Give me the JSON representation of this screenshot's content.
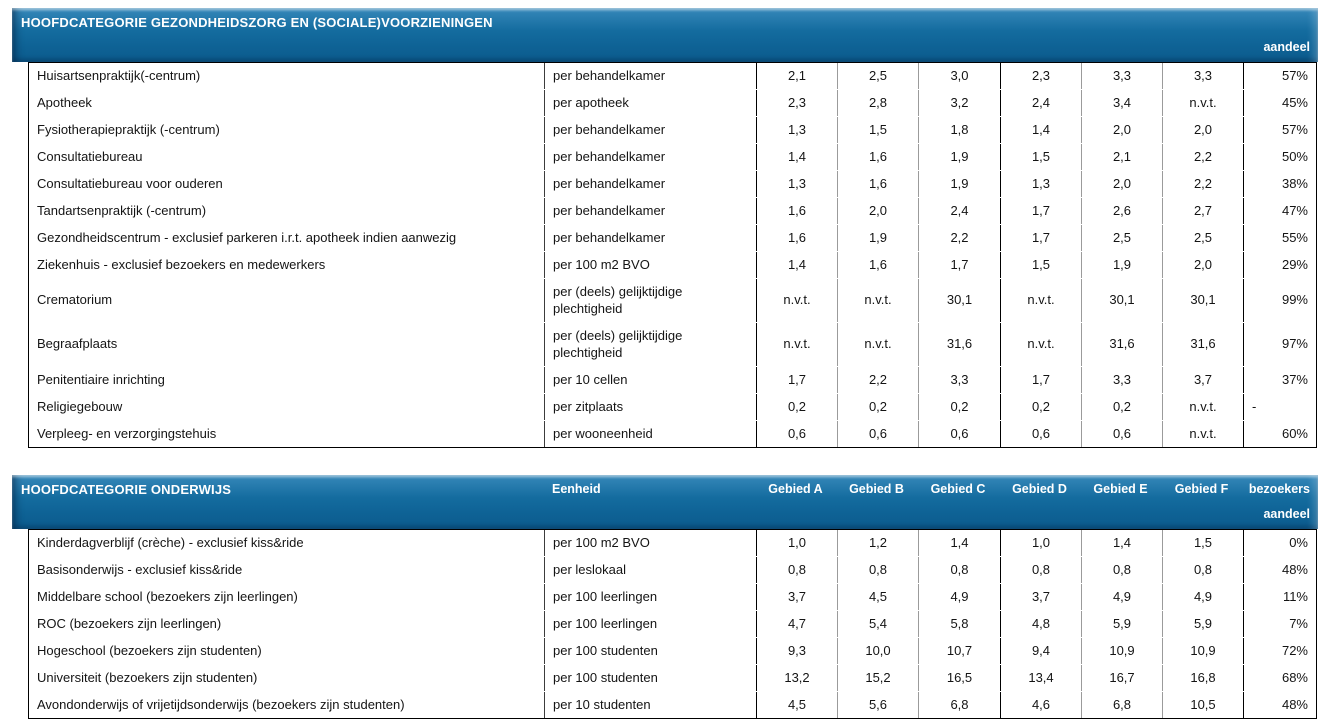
{
  "colors": {
    "header_bar_blue": "#146c9f",
    "header_bar_highlight": "#62a6cd",
    "header_text": "#ffffff",
    "body_text": "#141414",
    "grid_line_gray": "#9b9b9b",
    "grid_line_black": "#000000"
  },
  "table1": {
    "title": "HOOFDCATEGORIE GEZONDHEIDSZORG EN (SOCIALE)VOORZIENINGEN",
    "share_header": "aandeel",
    "rows": [
      {
        "name": "Huisartsenpraktijk(-centrum)",
        "unit": "per behandelkamer",
        "values": [
          "2,1",
          "2,5",
          "3,0",
          "2,3",
          "3,3",
          "3,3"
        ],
        "share": "57%"
      },
      {
        "name": "Apotheek",
        "unit": "per apotheek",
        "values": [
          "2,3",
          "2,8",
          "3,2",
          "2,4",
          "3,4",
          "n.v.t."
        ],
        "share": "45%"
      },
      {
        "name": "Fysiotherapiepraktijk (-centrum)",
        "unit": "per behandelkamer",
        "values": [
          "1,3",
          "1,5",
          "1,8",
          "1,4",
          "2,0",
          "2,0"
        ],
        "share": "57%"
      },
      {
        "name": "Consultatiebureau",
        "unit": "per behandelkamer",
        "values": [
          "1,4",
          "1,6",
          "1,9",
          "1,5",
          "2,1",
          "2,2"
        ],
        "share": "50%"
      },
      {
        "name": "Consultatiebureau voor ouderen",
        "unit": "per behandelkamer",
        "values": [
          "1,3",
          "1,6",
          "1,9",
          "1,3",
          "2,0",
          "2,2"
        ],
        "share": "38%"
      },
      {
        "name": "Tandartsenpraktijk (-centrum)",
        "unit": "per behandelkamer",
        "values": [
          "1,6",
          "2,0",
          "2,4",
          "1,7",
          "2,6",
          "2,7"
        ],
        "share": "47%"
      },
      {
        "name": "Gezondheidscentrum - exclusief parkeren i.r.t. apotheek indien aanwezig",
        "unit": "per behandelkamer",
        "values": [
          "1,6",
          "1,9",
          "2,2",
          "1,7",
          "2,5",
          "2,5"
        ],
        "share": "55%"
      },
      {
        "name": "Ziekenhuis - exclusief bezoekers en medewerkers",
        "unit": "per 100 m2 BVO",
        "values": [
          "1,4",
          "1,6",
          "1,7",
          "1,5",
          "1,9",
          "2,0"
        ],
        "share": "29%"
      },
      {
        "name": "Crematorium",
        "unit": "per (deels) gelijktijdige plechtigheid",
        "values": [
          "n.v.t.",
          "n.v.t.",
          "30,1",
          "n.v.t.",
          "30,1",
          "30,1"
        ],
        "share": "99%",
        "tall": true
      },
      {
        "name": "Begraafplaats",
        "unit": "per (deels) gelijktijdige plechtigheid",
        "values": [
          "n.v.t.",
          "n.v.t.",
          "31,6",
          "n.v.t.",
          "31,6",
          "31,6"
        ],
        "share": "97%",
        "tall": true
      },
      {
        "name": "Penitentiaire inrichting",
        "unit": "per 10 cellen",
        "values": [
          "1,7",
          "2,2",
          "3,3",
          "1,7",
          "3,3",
          "3,7"
        ],
        "share": "37%"
      },
      {
        "name": "Religiegebouw",
        "unit": "per zitplaats",
        "values": [
          "0,2",
          "0,2",
          "0,2",
          "0,2",
          "0,2",
          "n.v.t."
        ],
        "share": "-",
        "share_align": "left"
      },
      {
        "name": "Verpleeg- en verzorgingstehuis",
        "unit": "per wooneenheid",
        "values": [
          "0,6",
          "0,6",
          "0,6",
          "0,6",
          "0,6",
          "n.v.t."
        ],
        "share": "60%"
      }
    ]
  },
  "table2": {
    "title": "HOOFDCATEGORIE ONDERWIJS",
    "unit_header": "Eenheid",
    "col_headers": [
      "Gebied A",
      "Gebied B",
      "Gebied C",
      "Gebied D",
      "Gebied E",
      "Gebied F"
    ],
    "share_header_line1": "bezoekers",
    "share_header_line2": "aandeel",
    "rows": [
      {
        "name": "Kinderdagverblijf (crèche) - exclusief kiss&ride",
        "unit": "per 100 m2 BVO",
        "values": [
          "1,0",
          "1,2",
          "1,4",
          "1,0",
          "1,4",
          "1,5"
        ],
        "share": "0%"
      },
      {
        "name": "Basisonderwijs - exclusief kiss&ride",
        "unit": "per leslokaal",
        "values": [
          "0,8",
          "0,8",
          "0,8",
          "0,8",
          "0,8",
          "0,8"
        ],
        "share": "48%"
      },
      {
        "name": "Middelbare school (bezoekers zijn leerlingen)",
        "unit": "per 100 leerlingen",
        "values": [
          "3,7",
          "4,5",
          "4,9",
          "3,7",
          "4,9",
          "4,9"
        ],
        "share": "11%"
      },
      {
        "name": "ROC (bezoekers zijn leerlingen)",
        "unit": "per 100 leerlingen",
        "values": [
          "4,7",
          "5,4",
          "5,8",
          "4,8",
          "5,9",
          "5,9"
        ],
        "share": "7%"
      },
      {
        "name": "Hogeschool (bezoekers zijn studenten)",
        "unit": "per 100 studenten",
        "values": [
          "9,3",
          "10,0",
          "10,7",
          "9,4",
          "10,9",
          "10,9"
        ],
        "share": "72%"
      },
      {
        "name": "Universiteit (bezoekers zijn studenten)",
        "unit": "per 100 studenten",
        "values": [
          "13,2",
          "15,2",
          "16,5",
          "13,4",
          "16,7",
          "16,8"
        ],
        "share": "68%"
      },
      {
        "name": "Avondonderwijs of vrijetijdsonderwijs (bezoekers zijn studenten)",
        "unit": "per 10 studenten",
        "values": [
          "4,5",
          "5,6",
          "6,8",
          "4,6",
          "6,8",
          "10,5"
        ],
        "share": "48%"
      }
    ]
  }
}
